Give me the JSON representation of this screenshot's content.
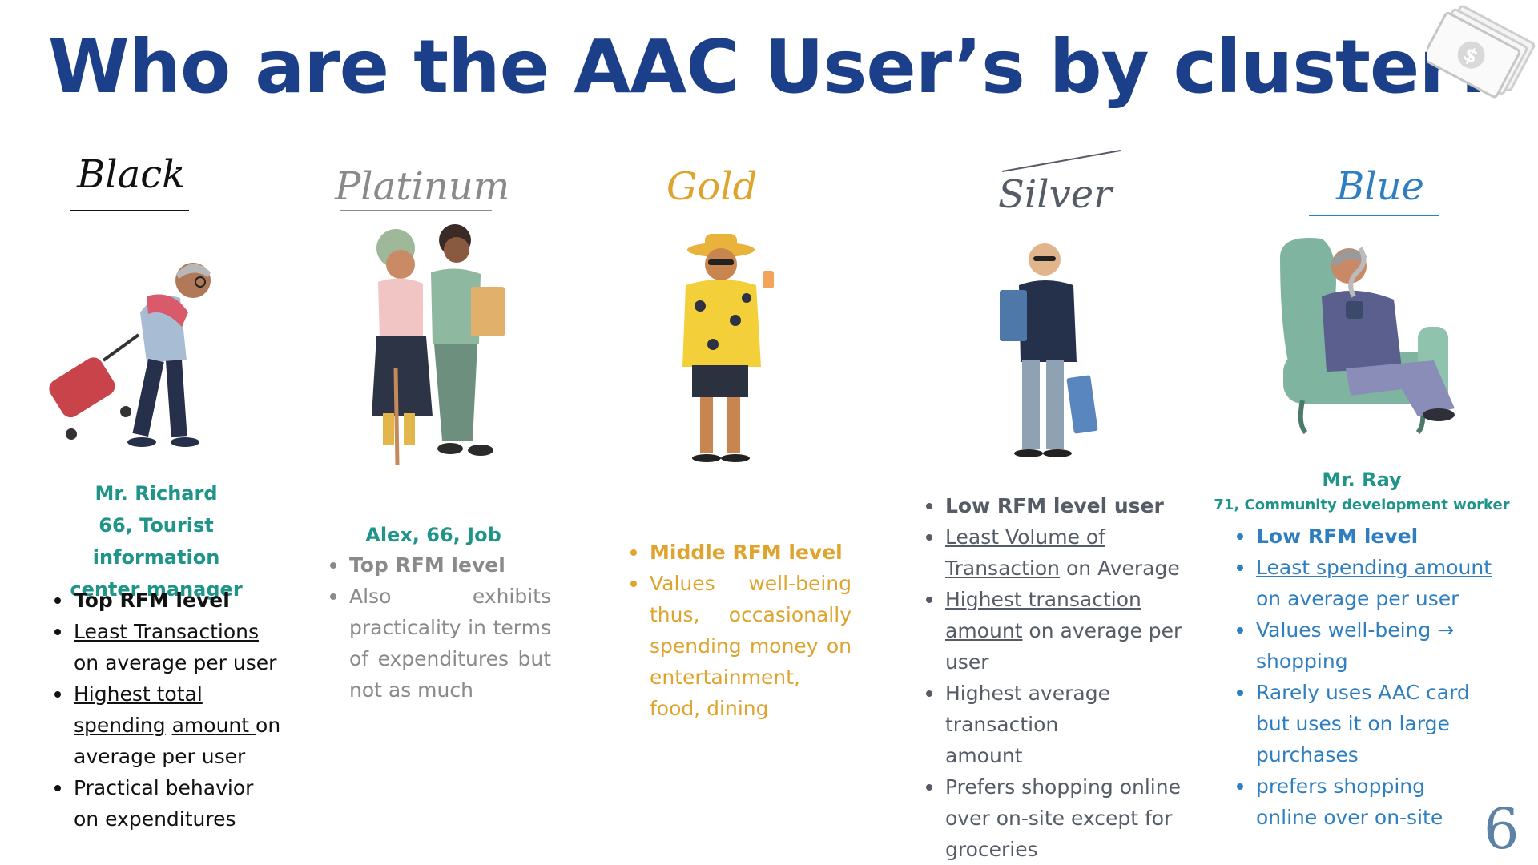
{
  "title": "Who are the AAC User’s by cluster?",
  "page_number": "6",
  "colors": {
    "title": "#1c3f8a",
    "black": "#111111",
    "platinum": "#8a8a8a",
    "gold": "#dea42e",
    "silver": "#555c66",
    "blue": "#2f7fc0",
    "teal": "#1f9488"
  },
  "money_icon": "money-stack-icon",
  "clusters": [
    {
      "label": "Black",
      "persona": "Mr. Richard",
      "persona_detail_1": "66, Tourist information",
      "persona_detail_2": "center manager",
      "bullets": {
        "b1": "Top RFM level",
        "b2_u": "Least Transactions",
        "b2_t": "on average per user",
        "b3_u1": "Highest total",
        "b3_u2": "spending",
        "b3_u3": "amount ",
        "b3_t1": "on",
        "b3_t2": "average per user",
        "b4": "Practical behavior on expenditures"
      }
    },
    {
      "label": "Platinum",
      "persona": "Alex, 66, Job",
      "bullets": {
        "b1": "Top RFM level",
        "b2": "Also exhibits practicality in terms of expenditures but not as much"
      }
    },
    {
      "label": "Gold",
      "bullets": {
        "b1": "Middle RFM level",
        "b2": "Values well-being thus, occasionally spending money on entertainment, food, dining"
      }
    },
    {
      "label": "Silver",
      "bullets": {
        "b1": "Low RFM level user",
        "b2_u1": "Least Volume of",
        "b2_u2": "Transaction",
        "b2_t": " on Average",
        "b3_u1": "Highest transaction",
        "b3_u2": "amount",
        "b3_t": " on average per user",
        "b4": "Highest average transaction amount",
        "b5": "Prefers shopping online over on-site except for groceries"
      }
    },
    {
      "label": "Blue",
      "persona": "Mr. Ray",
      "persona_detail": "71, Community development worker",
      "bullets": {
        "b1": "Low RFM level",
        "b2_u": "Least spending amount",
        "b2_t": "on average per user",
        "b3": "Values well-being →",
        "b3_t": "shopping",
        "b4": "Rarely uses AAC card but uses it on large purchases",
        "b5": "prefers shopping online over on-site"
      }
    }
  ]
}
